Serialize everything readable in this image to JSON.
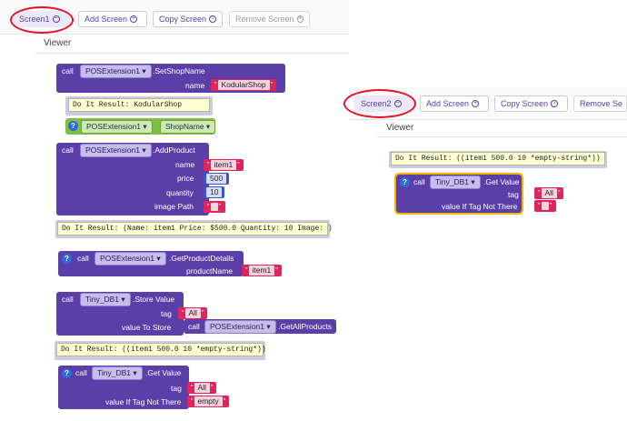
{
  "left": {
    "toolbar": {
      "screen_label": "Screen1",
      "add_screen": "Add Screen",
      "copy_screen": "Copy Screen",
      "remove_screen": "Remove Screen"
    },
    "viewer_label": "Viewer",
    "blocks": {
      "set_shop_name": {
        "call": "call",
        "component": "POSExtension1",
        "method": ".SetShopName",
        "param_name": "name",
        "param_value": "KodularShop"
      },
      "comment1": "Do It Result: KodularShop",
      "shop_getter": {
        "component": "POSExtension1",
        "property": "ShopName"
      },
      "add_product": {
        "call": "call",
        "component": "POSExtension1",
        "method": ".AddProduct",
        "p_name": "name",
        "v_name": "item1",
        "p_price": "price",
        "v_price": "500",
        "p_quantity": "quantity",
        "v_quantity": "10",
        "p_image": "image Path",
        "v_image": ""
      },
      "comment2": "Do It Result: (Name: item1 Price: $500.0 Quantity: 10 Image: )",
      "get_details": {
        "q": "?",
        "call": "call",
        "component": "POSExtension1",
        "method": ".GetProductDetails",
        "param": "productName",
        "value": "item1"
      },
      "store_value": {
        "call": "call",
        "component": "Tiny_DB1",
        "method": ".Store Value",
        "p_tag": "tag",
        "v_tag": "All",
        "p_store": "value To Store",
        "inner_call": "call",
        "inner_component": "POSExtension1",
        "inner_method": ".GetAllProducts"
      },
      "comment3": "Do It Result: ((item1 500.0 10 *empty-string*))",
      "get_value": {
        "q": "?",
        "call": "call",
        "component": "Tiny_DB1",
        "method": ".Get Value",
        "p_tag": "tag",
        "v_tag": "All",
        "p_default": "value If Tag Not There",
        "v_default": "empty"
      }
    }
  },
  "right": {
    "toolbar": {
      "screen_label": "Screen2",
      "add_screen": "Add Screen",
      "copy_screen": "Copy Screen",
      "remove_screen": "Remove Se"
    },
    "viewer_label": "Viewer",
    "blocks": {
      "comment": "Do It Result: ((item1 500.0 10 *empty-string*))",
      "get_value": {
        "q": "?",
        "call": "call",
        "component": "Tiny_DB1",
        "method": ".Get Value",
        "p_tag": "tag",
        "v_tag": "All",
        "p_default": "value If Tag Not There",
        "v_default": ""
      }
    }
  },
  "colors": {
    "block_purple": "#5b3ea8",
    "text_block_red": "#e0245e",
    "number_block_blue": "#3b55c7",
    "getter_green": "#7fbf46",
    "comment_yellow": "#ffffd4",
    "highlight_ellipse": "#e81224",
    "selected_outline": "#f2b400"
  },
  "icons": [
    "add-circle-icon",
    "copy-icon",
    "remove-circle-icon",
    "screen-dropdown-icon",
    "help-question-icon"
  ]
}
